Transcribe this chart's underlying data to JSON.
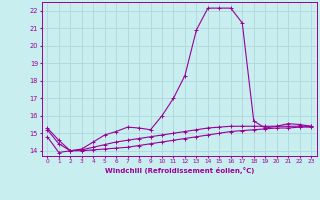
{
  "xlabel": "Windchill (Refroidissement éolien,°C)",
  "background_color": "#c8eef0",
  "line_color": "#990099",
  "grid_color": "#b0d8dc",
  "xlim": [
    -0.5,
    23.5
  ],
  "ylim": [
    13.7,
    22.5
  ],
  "xticks": [
    0,
    1,
    2,
    3,
    4,
    5,
    6,
    7,
    8,
    9,
    10,
    11,
    12,
    13,
    14,
    15,
    16,
    17,
    18,
    19,
    20,
    21,
    22,
    23
  ],
  "yticks": [
    14,
    15,
    16,
    17,
    18,
    19,
    20,
    21,
    22
  ],
  "line1_x": [
    0,
    1,
    2,
    3,
    4,
    5,
    6,
    7,
    8,
    9,
    10,
    11,
    12,
    13,
    14,
    15,
    16,
    17,
    18,
    19,
    20,
    21,
    22,
    23
  ],
  "line1_y": [
    15.3,
    14.6,
    14.0,
    14.1,
    14.5,
    14.9,
    15.1,
    15.35,
    15.3,
    15.2,
    16.0,
    17.0,
    18.3,
    20.9,
    22.15,
    22.15,
    22.15,
    21.3,
    15.7,
    15.3,
    15.4,
    15.55,
    15.5,
    15.4
  ],
  "line2_x": [
    0,
    1,
    2,
    3,
    4,
    5,
    6,
    7,
    8,
    9,
    10,
    11,
    12,
    13,
    14,
    15,
    16,
    17,
    18,
    19,
    20,
    21,
    22,
    23
  ],
  "line2_y": [
    15.2,
    14.4,
    14.0,
    14.05,
    14.2,
    14.35,
    14.5,
    14.6,
    14.7,
    14.8,
    14.9,
    15.0,
    15.1,
    15.2,
    15.3,
    15.35,
    15.4,
    15.4,
    15.4,
    15.4,
    15.4,
    15.4,
    15.4,
    15.4
  ],
  "line3_x": [
    0,
    1,
    2,
    3,
    4,
    5,
    6,
    7,
    8,
    9,
    10,
    11,
    12,
    13,
    14,
    15,
    16,
    17,
    18,
    19,
    20,
    21,
    22,
    23
  ],
  "line3_y": [
    14.8,
    13.9,
    14.0,
    14.0,
    14.05,
    14.1,
    14.15,
    14.2,
    14.3,
    14.4,
    14.5,
    14.6,
    14.7,
    14.8,
    14.9,
    15.0,
    15.1,
    15.15,
    15.2,
    15.25,
    15.3,
    15.3,
    15.35,
    15.35
  ]
}
